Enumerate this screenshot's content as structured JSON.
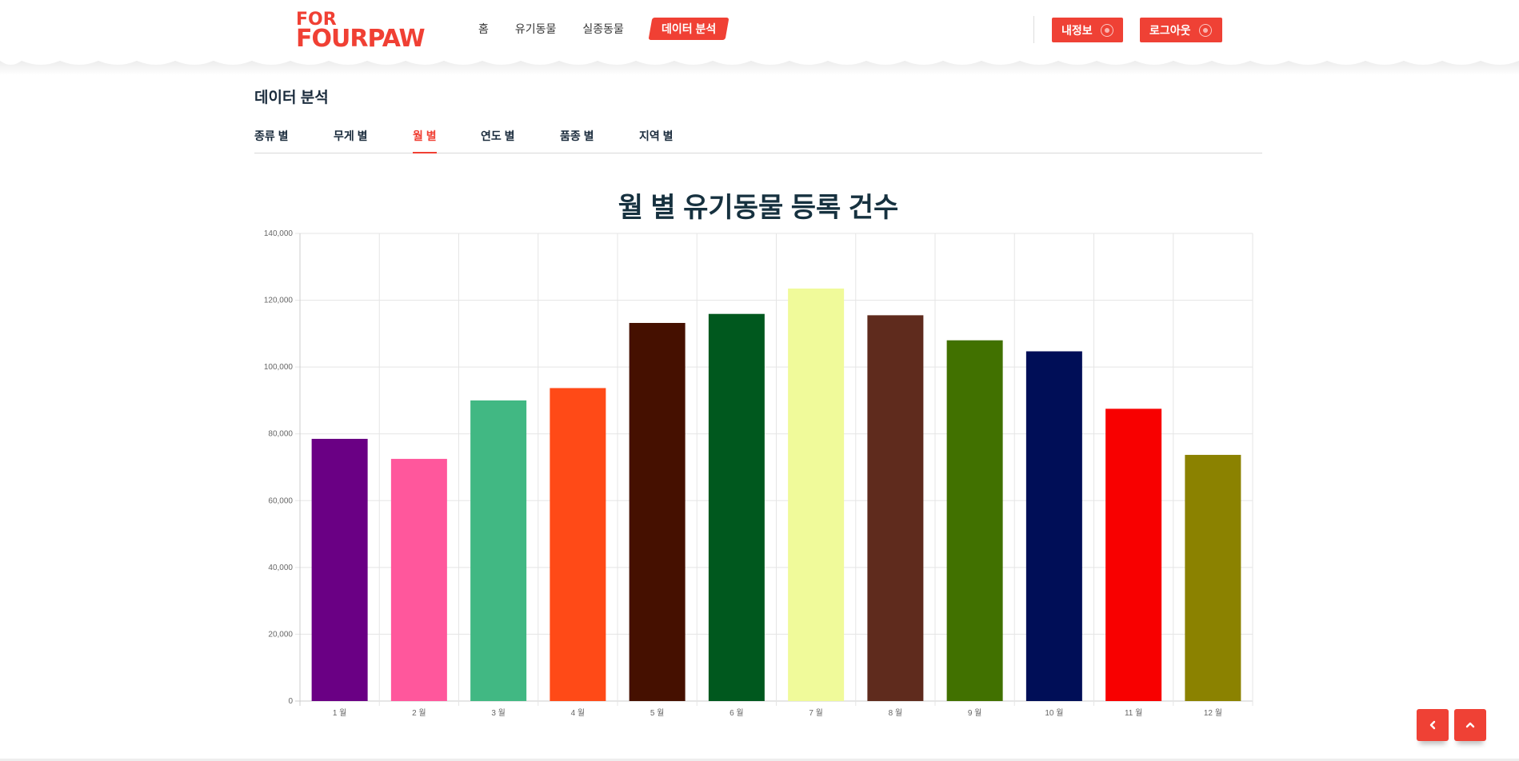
{
  "header": {
    "logo_top": "FOR",
    "logo_bottom": "FOURPAW",
    "nav": [
      {
        "label": "홈"
      },
      {
        "label": "유기동물"
      },
      {
        "label": "실종동물"
      },
      {
        "label": "데이터 분석"
      }
    ],
    "my_info_label": "내정보",
    "logout_label": "로그아웃"
  },
  "page": {
    "title": "데이터 분석",
    "tabs": [
      {
        "label": "종류 별"
      },
      {
        "label": "무게 별"
      },
      {
        "label": "월 별"
      },
      {
        "label": "연도 별"
      },
      {
        "label": "품종 별"
      },
      {
        "label": "지역 별"
      }
    ],
    "active_tab": "월 별"
  },
  "colors": {
    "accent": "#f04034"
  },
  "icons": {
    "back": "chevron-left-icon",
    "top": "chevron-up-icon"
  },
  "chart_data": {
    "type": "bar",
    "title": "월 별 유기동물 등록 건수",
    "xlabel": "",
    "ylabel": "",
    "categories": [
      "1 월",
      "2 월",
      "3 월",
      "4 월",
      "5 월",
      "6 월",
      "7 월",
      "8 월",
      "9 월",
      "10 월",
      "11 월",
      "12 월"
    ],
    "values": [
      78500,
      72500,
      90000,
      93700,
      113200,
      115900,
      123500,
      115500,
      108000,
      104700,
      87500,
      73700
    ],
    "colors": [
      "#6a0084",
      "#ff579c",
      "#41b883",
      "#ff4a17",
      "#451000",
      "#00581e",
      "#f0fa9a",
      "#5f2b1d",
      "#417100",
      "#000e57",
      "#f80000",
      "#8b8200"
    ],
    "ylim": [
      0,
      140000
    ],
    "yticks": [
      0,
      20000,
      40000,
      60000,
      80000,
      100000,
      120000,
      140000
    ],
    "ytick_labels": [
      "0",
      "20,000",
      "40,000",
      "60,000",
      "80,000",
      "100,000",
      "120,000",
      "140,000"
    ],
    "grid": true,
    "legend": "none"
  }
}
